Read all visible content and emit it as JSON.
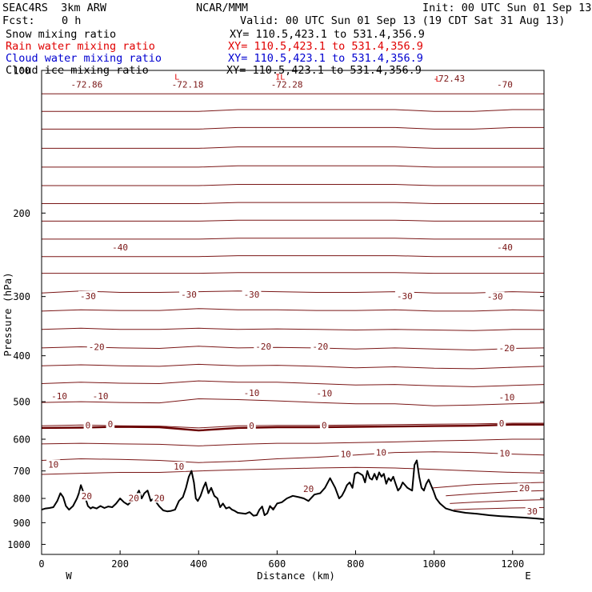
{
  "header": {
    "model": "SEAC4RS  3km ARW",
    "institution": "NCAR/MMM",
    "init": "Init: 00 UTC Sun 01 Sep 13",
    "fcst_label": "Fcst:",
    "fcst_value": "0 h",
    "valid": "Valid: 00 UTC Sun 01 Sep 13 (19 CDT Sat 31 Aug 13)"
  },
  "fields": [
    {
      "name": "Snow mixing ratio",
      "xy": "XY= 110.5,423.1 to 531.4,356.9",
      "color": "#000000"
    },
    {
      "name": "Rain water mixing ratio",
      "xy": "XY= 110.5,423.1 to 531.4,356.9",
      "color": "#e00000"
    },
    {
      "name": "Cloud water mixing ratio",
      "xy": "XY= 110.5,423.1 to 531.4,356.9",
      "color": "#0000d0"
    },
    {
      "name": "Cloud ice mixing ratio",
      "xy": "XY= 110.5,423.1 to 531.4,356.9",
      "color": "#000000"
    }
  ],
  "colors": {
    "isotherm": "#7a1616",
    "zero_isotherm": "#6a0000",
    "terrain": "#000000",
    "rain_marker": "#e00000"
  },
  "chart_data": {
    "type": "line",
    "xlabel": "Distance (km)",
    "ylabel": "Pressure (hPa)",
    "xlim": [
      0,
      1280
    ],
    "ylim": [
      1050,
      100
    ],
    "x_ticks": [
      0,
      200,
      400,
      600,
      800,
      1000,
      1200
    ],
    "y_ticks": [
      100,
      200,
      300,
      400,
      500,
      600,
      700,
      800,
      900,
      1000
    ],
    "x_tick_labels": [
      "0",
      "200",
      "400",
      "600",
      "800",
      "1000",
      "1200"
    ],
    "y_tick_labels": [
      "100",
      "200",
      "300",
      "400",
      "500",
      "600",
      "700",
      "800",
      "900",
      "1000"
    ],
    "y_scale": "log",
    "endpoint_labels": {
      "left": "W",
      "right": "E"
    },
    "terrain": {
      "name": "surface pressure",
      "x": [
        0,
        10,
        20,
        30,
        40,
        48,
        55,
        62,
        70,
        80,
        90,
        95,
        100,
        105,
        112,
        118,
        125,
        130,
        140,
        150,
        160,
        170,
        180,
        190,
        200,
        210,
        220,
        230,
        240,
        248,
        255,
        262,
        270,
        278,
        285,
        292,
        300,
        310,
        320,
        330,
        340,
        350,
        360,
        368,
        375,
        382,
        388,
        393,
        398,
        405,
        412,
        418,
        425,
        432,
        440,
        448,
        455,
        462,
        470,
        478,
        485,
        492,
        500,
        510,
        520,
        530,
        540,
        548,
        555,
        562,
        568,
        575,
        582,
        590,
        600,
        612,
        625,
        640,
        655,
        668,
        680,
        695,
        710,
        722,
        735,
        748,
        758,
        765,
        772,
        778,
        785,
        792,
        798,
        805,
        812,
        818,
        824,
        830,
        836,
        842,
        848,
        854,
        860,
        866,
        872,
        878,
        884,
        890,
        896,
        902,
        908,
        914,
        920,
        926,
        932,
        938,
        944,
        950,
        956,
        962,
        968,
        974,
        980,
        986,
        992,
        998,
        1005,
        1015,
        1030,
        1050,
        1080,
        1110,
        1140,
        1170,
        1200,
        1230,
        1260,
        1280
      ],
      "p": [
        845,
        840,
        838,
        835,
        810,
        780,
        795,
        830,
        845,
        830,
        800,
        780,
        750,
        770,
        800,
        830,
        840,
        835,
        840,
        830,
        838,
        832,
        835,
        820,
        800,
        815,
        825,
        810,
        790,
        770,
        800,
        780,
        770,
        810,
        800,
        815,
        832,
        848,
        852,
        850,
        845,
        810,
        795,
        760,
        720,
        700,
        740,
        800,
        810,
        790,
        760,
        740,
        780,
        760,
        790,
        800,
        835,
        820,
        840,
        835,
        845,
        850,
        858,
        860,
        862,
        855,
        870,
        868,
        845,
        832,
        868,
        860,
        830,
        845,
        820,
        815,
        800,
        790,
        795,
        800,
        810,
        785,
        780,
        760,
        725,
        760,
        800,
        790,
        770,
        750,
        740,
        760,
        710,
        705,
        710,
        715,
        740,
        700,
        725,
        730,
        710,
        730,
        705,
        720,
        710,
        745,
        725,
        735,
        720,
        745,
        770,
        760,
        740,
        750,
        760,
        765,
        770,
        680,
        665,
        720,
        760,
        770,
        745,
        730,
        750,
        770,
        800,
        820,
        840,
        850,
        858,
        862,
        868,
        872,
        875,
        878,
        882,
        885
      ]
    },
    "isotherms": {
      "x": [
        0,
        100,
        200,
        300,
        400,
        500,
        600,
        700,
        800,
        900,
        1000,
        1100,
        1200,
        1280
      ],
      "lines": [
        {
          "p": [
            112,
            112,
            112,
            112,
            112,
            112,
            112,
            112,
            112,
            112,
            112,
            112,
            112,
            112
          ]
        },
        {
          "p": [
            122,
            122,
            122,
            122,
            122,
            121,
            121,
            121,
            121,
            121,
            122,
            122,
            121,
            121
          ]
        },
        {
          "p": [
            133,
            133,
            133,
            133,
            133,
            132,
            132,
            132,
            132,
            132,
            133,
            133,
            132,
            132
          ]
        },
        {
          "p": [
            146,
            146,
            146,
            146,
            146,
            145,
            145,
            145,
            145,
            145,
            146,
            146,
            146,
            146
          ]
        },
        {
          "p": [
            160,
            160,
            160,
            160,
            160,
            159,
            159,
            159,
            159,
            159,
            160,
            160,
            160,
            160
          ]
        },
        {
          "p": [
            175,
            175,
            175,
            175,
            175,
            174,
            174,
            174,
            174,
            174,
            175,
            175,
            175,
            175
          ]
        },
        {
          "p": [
            191,
            191,
            191,
            191,
            191,
            190,
            190,
            190,
            190,
            190,
            191,
            191,
            191,
            191
          ]
        },
        {
          "p": [
            208,
            208,
            208,
            208,
            208,
            207,
            207,
            207,
            207,
            207,
            208,
            208,
            208,
            208
          ]
        },
        {
          "p": [
            227,
            227,
            227,
            227,
            227,
            226,
            226,
            226,
            226,
            226,
            227,
            227,
            227,
            227
          ]
        },
        {
          "p": [
            247,
            247,
            247,
            247,
            247,
            246,
            246,
            246,
            246,
            246,
            247,
            247,
            247,
            247
          ]
        },
        {
          "p": [
            268,
            268,
            268,
            268,
            268,
            267,
            267,
            267,
            267,
            267,
            268,
            268,
            268,
            268
          ]
        },
        {
          "p": [
            295,
            292,
            294,
            294,
            293,
            292,
            293,
            294,
            294,
            293,
            295,
            295,
            293,
            294
          ]
        },
        {
          "p": [
            322,
            320,
            321,
            321,
            318,
            320,
            320,
            321,
            321,
            320,
            322,
            322,
            320,
            321
          ]
        },
        {
          "p": [
            352,
            350,
            352,
            352,
            350,
            352,
            351,
            352,
            353,
            352,
            353,
            354,
            352,
            352
          ]
        },
        {
          "p": [
            385,
            383,
            385,
            386,
            382,
            385,
            384,
            385,
            387,
            385,
            387,
            389,
            386,
            385
          ]
        },
        {
          "p": [
            420,
            418,
            420,
            421,
            417,
            420,
            419,
            421,
            424,
            422,
            425,
            426,
            423,
            421
          ]
        },
        {
          "p": [
            458,
            455,
            457,
            458,
            452,
            455,
            455,
            458,
            461,
            460,
            463,
            465,
            462,
            460
          ]
        },
        {
          "p": [
            502,
            500,
            502,
            503,
            493,
            495,
            498,
            502,
            505,
            505,
            510,
            508,
            505,
            503
          ]
        },
        {
          "p": [
            562,
            560,
            562,
            563,
            568,
            562,
            561,
            561,
            560,
            559,
            558,
            557,
            555,
            555
          ]
        },
        {
          "p": [
            614,
            612,
            614,
            615,
            620,
            615,
            612,
            612,
            610,
            608,
            605,
            603,
            600,
            600
          ]
        },
        {
          "p": [
            665,
            660,
            662,
            665,
            672,
            668,
            660,
            655,
            648,
            640,
            638,
            640,
            645,
            648
          ]
        },
        {
          "p": [
            712,
            708,
            705,
            705,
            700,
            696,
            693,
            690,
            688,
            690,
            695,
            700,
            705,
            707
          ]
        }
      ]
    },
    "zero_isotherm": {
      "x": [
        0,
        100,
        200,
        300,
        400,
        500,
        600,
        700,
        800,
        900,
        1000,
        1100,
        1200,
        1280
      ],
      "p": [
        568,
        567,
        565,
        566,
        575,
        568,
        566,
        566,
        565,
        564,
        563,
        562,
        559,
        559
      ]
    },
    "lower_isotherms": [
      {
        "x": [
          580,
          700,
          800,
          900,
          1000,
          1100,
          1200,
          1280
        ],
        "p": [
          838,
          828,
          800,
          776,
          760,
          748,
          743,
          740
        ]
      },
      {
        "x": [
          1030,
          1100,
          1200,
          1280
        ],
        "p": [
          790,
          782,
          774,
          770
        ]
      },
      {
        "x": [
          1040,
          1100,
          1200,
          1280
        ],
        "p": [
          820,
          815,
          808,
          805
        ]
      },
      {
        "x": [
          1050,
          1100,
          1200,
          1280
        ],
        "p": [
          845,
          842,
          838,
          836
        ]
      }
    ],
    "contour_labels": [
      {
        "text": "-72.86",
        "x": 115,
        "p": 107
      },
      {
        "text": "-72.18",
        "x": 372,
        "p": 107
      },
      {
        "text": "-72.28",
        "x": 625,
        "p": 107
      },
      {
        "text": "-72.43",
        "x": 1038,
        "p": 104
      },
      {
        "text": "-70",
        "x": 1180,
        "p": 107
      },
      {
        "text": "-40",
        "x": 200,
        "p": 236
      },
      {
        "text": "-40",
        "x": 1180,
        "p": 236
      },
      {
        "text": "-30",
        "x": 118,
        "p": 299
      },
      {
        "text": "-30",
        "x": 375,
        "p": 297
      },
      {
        "text": "-30",
        "x": 535,
        "p": 297
      },
      {
        "text": "-30",
        "x": 925,
        "p": 299
      },
      {
        "text": "-30",
        "x": 1155,
        "p": 300
      },
      {
        "text": "-20",
        "x": 140,
        "p": 383
      },
      {
        "text": "-20",
        "x": 565,
        "p": 382
      },
      {
        "text": "-20",
        "x": 710,
        "p": 382
      },
      {
        "text": "-20",
        "x": 1185,
        "p": 385
      },
      {
        "text": "-10",
        "x": 45,
        "p": 486
      },
      {
        "text": "-10",
        "x": 150,
        "p": 486
      },
      {
        "text": "-10",
        "x": 535,
        "p": 479
      },
      {
        "text": "-10",
        "x": 720,
        "p": 480
      },
      {
        "text": "-10",
        "x": 1185,
        "p": 489
      },
      {
        "text": "0",
        "x": 118,
        "p": 560
      },
      {
        "text": "0",
        "x": 175,
        "p": 557
      },
      {
        "text": "0",
        "x": 535,
        "p": 562
      },
      {
        "text": "0",
        "x": 720,
        "p": 560
      },
      {
        "text": "0",
        "x": 1172,
        "p": 555
      },
      {
        "text": "10",
        "x": 30,
        "p": 678
      },
      {
        "text": "10",
        "x": 350,
        "p": 685
      },
      {
        "text": "10",
        "x": 775,
        "p": 645
      },
      {
        "text": "10",
        "x": 865,
        "p": 640
      },
      {
        "text": "10",
        "x": 1180,
        "p": 642
      },
      {
        "text": "20",
        "x": 115,
        "p": 790
      },
      {
        "text": "20",
        "x": 235,
        "p": 798
      },
      {
        "text": "20",
        "x": 300,
        "p": 798
      },
      {
        "text": "20",
        "x": 680,
        "p": 763
      },
      {
        "text": "20",
        "x": 1230,
        "p": 760
      },
      {
        "text": "30",
        "x": 1250,
        "p": 851
      }
    ],
    "rain_markers": [
      {
        "text": "L",
        "x": 345,
        "p": 103
      },
      {
        "text": "IL",
        "x": 608,
        "p": 103
      },
      {
        "text": "L",
        "x": 1010,
        "p": 104
      }
    ]
  }
}
